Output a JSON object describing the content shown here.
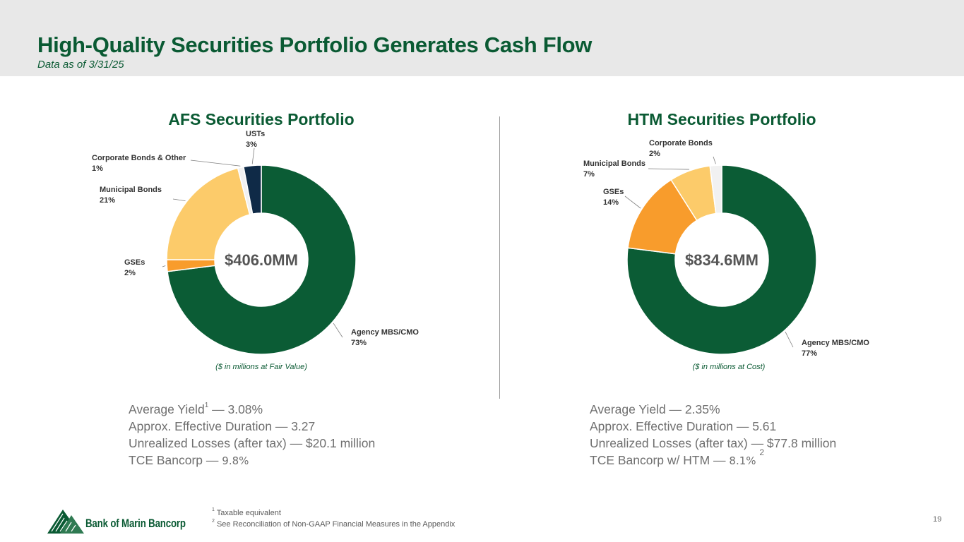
{
  "header": {
    "title": "High-Quality Securities Portfolio Generates Cash Flow",
    "subtitle": "Data as of 3/31/25"
  },
  "chart_data": [
    {
      "type": "pie",
      "title": "AFS Securities Portfolio",
      "center_label": "$406.0MM",
      "note": "($ in millions at Fair Value)",
      "slices": [
        {
          "label": "Agency MBS/CMO",
          "value": 73,
          "value_label": "73%",
          "color": "#0b5c35"
        },
        {
          "label": "GSEs",
          "value": 2,
          "value_label": "2%",
          "color": "#f89c2c"
        },
        {
          "label": "Municipal Bonds",
          "value": 21,
          "value_label": "21%",
          "color": "#fccb6a"
        },
        {
          "label": "Corporate Bonds & Other",
          "value": 1,
          "value_label": "1%",
          "color": "#f1f1f1"
        },
        {
          "label": "USTs",
          "value": 3,
          "value_label": "3%",
          "color": "#0f2a47"
        }
      ]
    },
    {
      "type": "pie",
      "title": "HTM Securities Portfolio",
      "center_label": "$834.6MM",
      "note": "($ in millions at Cost)",
      "slices": [
        {
          "label": "Agency MBS/CMO",
          "value": 77,
          "value_label": "77%",
          "color": "#0b5c35"
        },
        {
          "label": "GSEs",
          "value": 14,
          "value_label": "14%",
          "color": "#f89c2c"
        },
        {
          "label": "Municipal Bonds",
          "value": 7,
          "value_label": "7%",
          "color": "#fccb6a"
        },
        {
          "label": "Corporate Bonds",
          "value": 2,
          "value_label": "2%",
          "color": "#f1f1f1"
        }
      ]
    }
  ],
  "afs_stats": {
    "yield_label": "Average Yield",
    "yield_sup": "1",
    "yield_value": " — 3.08%",
    "duration": "Approx. Effective Duration — 3.27",
    "losses": "Unrealized Losses (after tax) — $20.1 million",
    "tce_label": "TCE Bancorp — ",
    "tce_value": "9.8%"
  },
  "htm_stats": {
    "yield": "Average Yield — 2.35%",
    "duration": "Approx. Effective Duration — 5.61",
    "losses": "Unrealized Losses (after tax) — $77.8 million",
    "tce_label": "TCE Bancorp w/ HTM — ",
    "tce_value": "8.1%",
    "tce_sup": "2"
  },
  "footnotes": {
    "n1_mark": "1",
    "n1_text": "Taxable equivalent",
    "n2_mark": "2",
    "n2_text": "See Reconciliation of Non-GAAP Financial Measures in the Appendix"
  },
  "logo_text": "Bank of Marin Bancorp",
  "page_number": "19"
}
